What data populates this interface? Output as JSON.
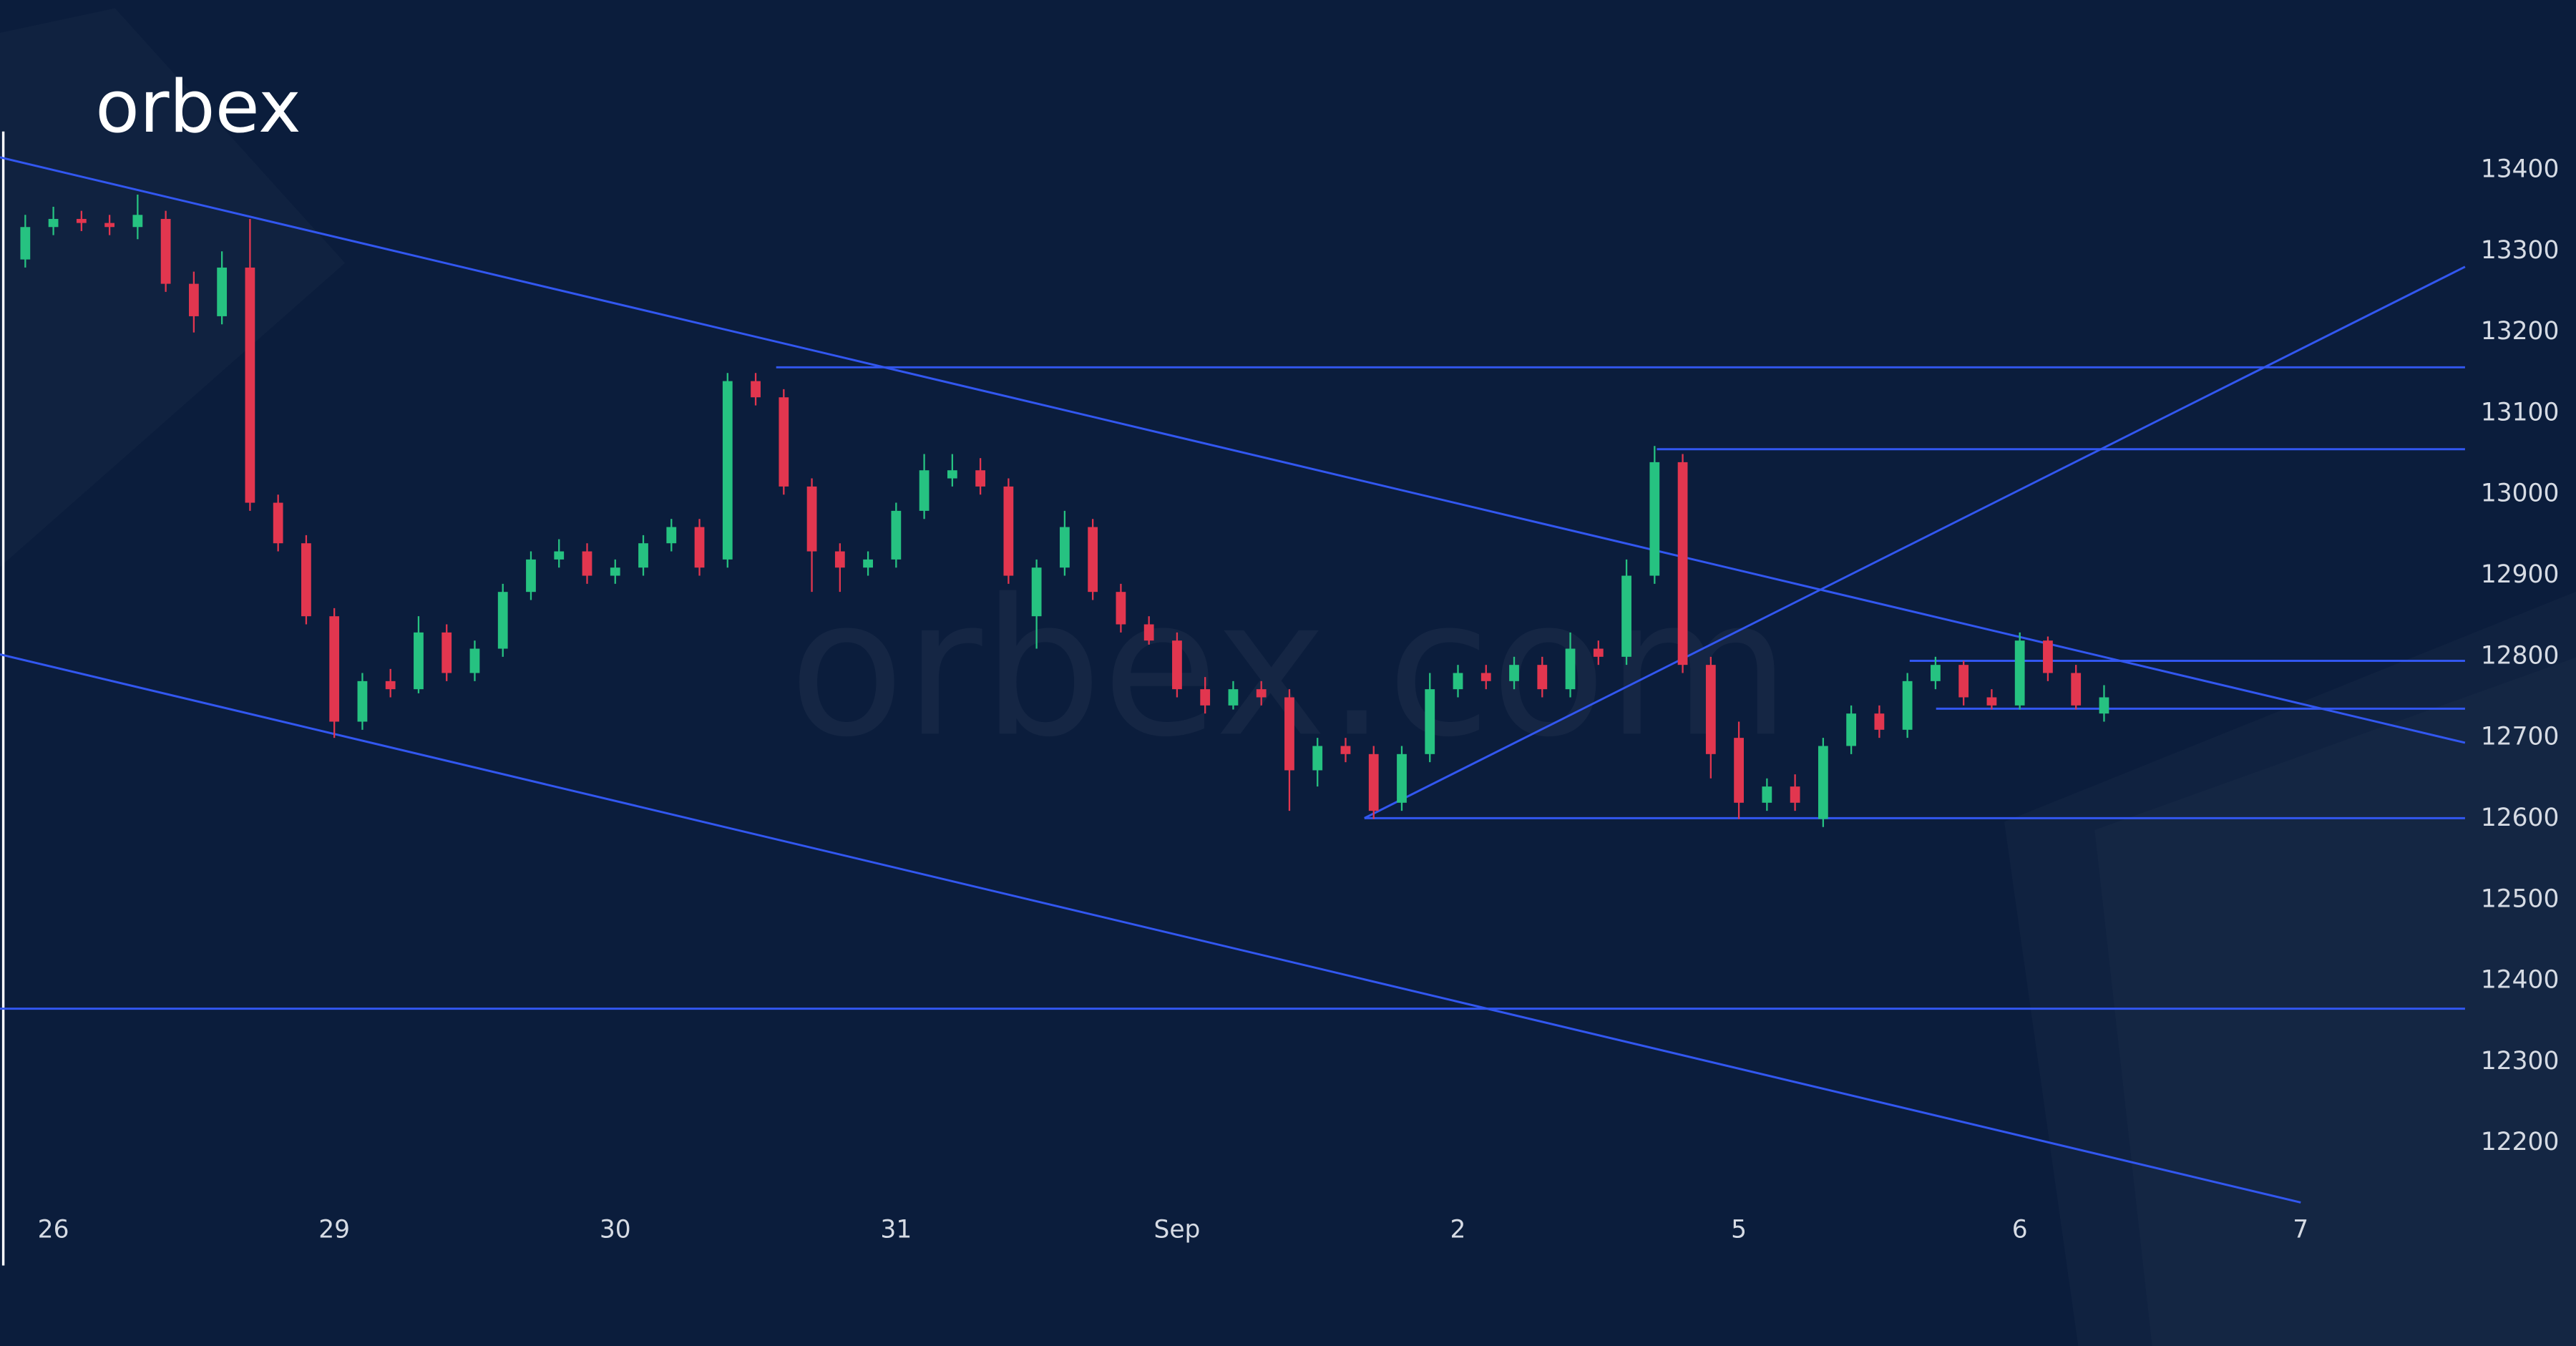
{
  "chart_data": {
    "type": "candlestick",
    "logo": "orbex",
    "watermark": "orbex.com",
    "up_color": "#26c281",
    "down_color": "#e2364f",
    "line_color": "#3257f0",
    "x": [
      -0.1,
      0,
      0.1,
      0.2,
      0.3,
      0.4,
      0.5,
      0.6,
      0.7,
      0.8,
      0.9,
      1,
      1.1,
      1.2,
      1.3,
      1.4,
      1.5,
      1.6,
      1.7,
      1.8,
      1.9,
      2,
      2.1,
      2.2,
      2.3,
      2.4,
      2.5,
      2.6,
      2.7,
      2.8,
      2.9,
      3,
      3.1,
      3.2,
      3.3,
      3.4,
      3.5,
      3.6,
      3.7,
      3.8,
      3.9,
      4,
      4.1,
      4.2,
      4.3,
      4.4,
      4.5,
      4.6,
      4.7,
      4.8,
      4.9,
      5,
      5.1,
      5.2,
      5.3,
      5.4,
      5.5,
      5.6,
      5.7,
      5.8,
      5.9,
      6,
      6.1,
      6.2,
      6.3,
      6.4,
      6.5,
      6.6,
      6.7,
      6.8,
      6.9,
      7,
      7.1,
      7.2,
      7.3
    ],
    "open": [
      13290,
      13330,
      13340,
      13335,
      13330,
      13340,
      13260,
      13220,
      13280,
      12990,
      12940,
      12850,
      12720,
      12770,
      12760,
      12830,
      12780,
      12810,
      12880,
      12920,
      12930,
      12900,
      12910,
      12940,
      12960,
      12920,
      13140,
      13120,
      13010,
      12930,
      12910,
      12920,
      12980,
      13020,
      13030,
      13010,
      12850,
      12910,
      12960,
      12880,
      12840,
      12820,
      12760,
      12740,
      12760,
      12750,
      12660,
      12690,
      12680,
      12620,
      12680,
      12760,
      12780,
      12770,
      12790,
      12760,
      12810,
      12800,
      12900,
      13040,
      12790,
      12700,
      12620,
      12640,
      12600,
      12690,
      12730,
      12710,
      12770,
      12790,
      12750,
      12740,
      12820,
      12780,
      12730
    ],
    "high": [
      13345,
      13355,
      13350,
      13345,
      13370,
      13350,
      13275,
      13300,
      13340,
      13000,
      12950,
      12860,
      12780,
      12785,
      12850,
      12840,
      12820,
      12890,
      12930,
      12945,
      12940,
      12920,
      12950,
      12970,
      12970,
      13150,
      13150,
      13130,
      13020,
      12940,
      12930,
      12990,
      13050,
      13050,
      13045,
      13020,
      12920,
      12980,
      12970,
      12890,
      12850,
      12830,
      12775,
      12770,
      12770,
      12760,
      12700,
      12700,
      12690,
      12690,
      12780,
      12790,
      12790,
      12800,
      12800,
      12830,
      12820,
      12920,
      13060,
      13050,
      12800,
      12720,
      12650,
      12655,
      12700,
      12740,
      12740,
      12780,
      12800,
      12795,
      12760,
      12830,
      12825,
      12790,
      12765
    ],
    "low": [
      13280,
      13320,
      13325,
      13320,
      13315,
      13250,
      13200,
      13210,
      12980,
      12930,
      12840,
      12700,
      12710,
      12750,
      12755,
      12770,
      12770,
      12800,
      12870,
      12910,
      12890,
      12890,
      12900,
      12930,
      12900,
      12910,
      13110,
      13000,
      12880,
      12880,
      12900,
      12910,
      12970,
      13010,
      13000,
      12890,
      12810,
      12900,
      12870,
      12830,
      12815,
      12750,
      12730,
      12735,
      12740,
      12610,
      12640,
      12670,
      12600,
      12610,
      12670,
      12750,
      12760,
      12760,
      12750,
      12750,
      12790,
      12790,
      12890,
      12780,
      12650,
      12600,
      12610,
      12610,
      12590,
      12680,
      12700,
      12700,
      12760,
      12740,
      12735,
      12735,
      12770,
      12735,
      12720
    ],
    "close": [
      13330,
      13340,
      13335,
      13330,
      13345,
      13260,
      13220,
      13280,
      12990,
      12940,
      12850,
      12720,
      12770,
      12760,
      12830,
      12780,
      12810,
      12880,
      12920,
      12930,
      12900,
      12910,
      12940,
      12960,
      12910,
      13140,
      13120,
      13010,
      12930,
      12910,
      12920,
      12980,
      13030,
      13030,
      13010,
      12900,
      12910,
      12960,
      12880,
      12840,
      12820,
      12760,
      12740,
      12760,
      12750,
      12660,
      12690,
      12680,
      12610,
      12680,
      12760,
      12780,
      12770,
      12790,
      12760,
      12810,
      12800,
      12900,
      13040,
      12790,
      12680,
      12620,
      12640,
      12620,
      12690,
      12730,
      12710,
      12770,
      12790,
      12750,
      12740,
      12820,
      12780,
      12740,
      12750
    ],
    "lines": [
      {
        "x": [
          -0.19,
          8.585
        ],
        "y": [
          13416,
          12694
        ]
      },
      {
        "x": [
          -0.19,
          8.0
        ],
        "y": [
          12803,
          12127
        ]
      },
      {
        "x": [
          -0.19,
          8.585
        ],
        "y": [
          12366,
          12366
        ]
      },
      {
        "x": [
          2.573,
          8.585
        ],
        "y": [
          13157,
          13157
        ]
      },
      {
        "x": [
          5.708,
          8.585
        ],
        "y": [
          13056,
          13056
        ]
      },
      {
        "x": [
          4.667,
          8.585
        ],
        "y": [
          12601,
          12601
        ]
      },
      {
        "x": [
          4.667,
          8.585
        ],
        "y": [
          12601,
          13281
        ]
      },
      {
        "x": [
          6.608,
          8.585
        ],
        "y": [
          12795,
          12795
        ]
      },
      {
        "x": [
          6.702,
          8.585
        ],
        "y": [
          12736,
          12736
        ]
      }
    ],
    "xlim": [
      -0.19,
      8.98
    ],
    "ylim": [
      11950,
      13610
    ],
    "xticks": [
      {
        "value": 0,
        "label": "26"
      },
      {
        "value": 1,
        "label": "29"
      },
      {
        "value": 2,
        "label": "30"
      },
      {
        "value": 3,
        "label": "31"
      },
      {
        "value": 4,
        "label": "Sep"
      },
      {
        "value": 5,
        "label": "2"
      },
      {
        "value": 6,
        "label": "5"
      },
      {
        "value": 7,
        "label": "6"
      },
      {
        "value": 8,
        "label": "7"
      }
    ],
    "yticks": [
      12200,
      12300,
      12400,
      12500,
      12600,
      12700,
      12800,
      12900,
      13000,
      13100,
      13200,
      13300,
      13400
    ]
  }
}
